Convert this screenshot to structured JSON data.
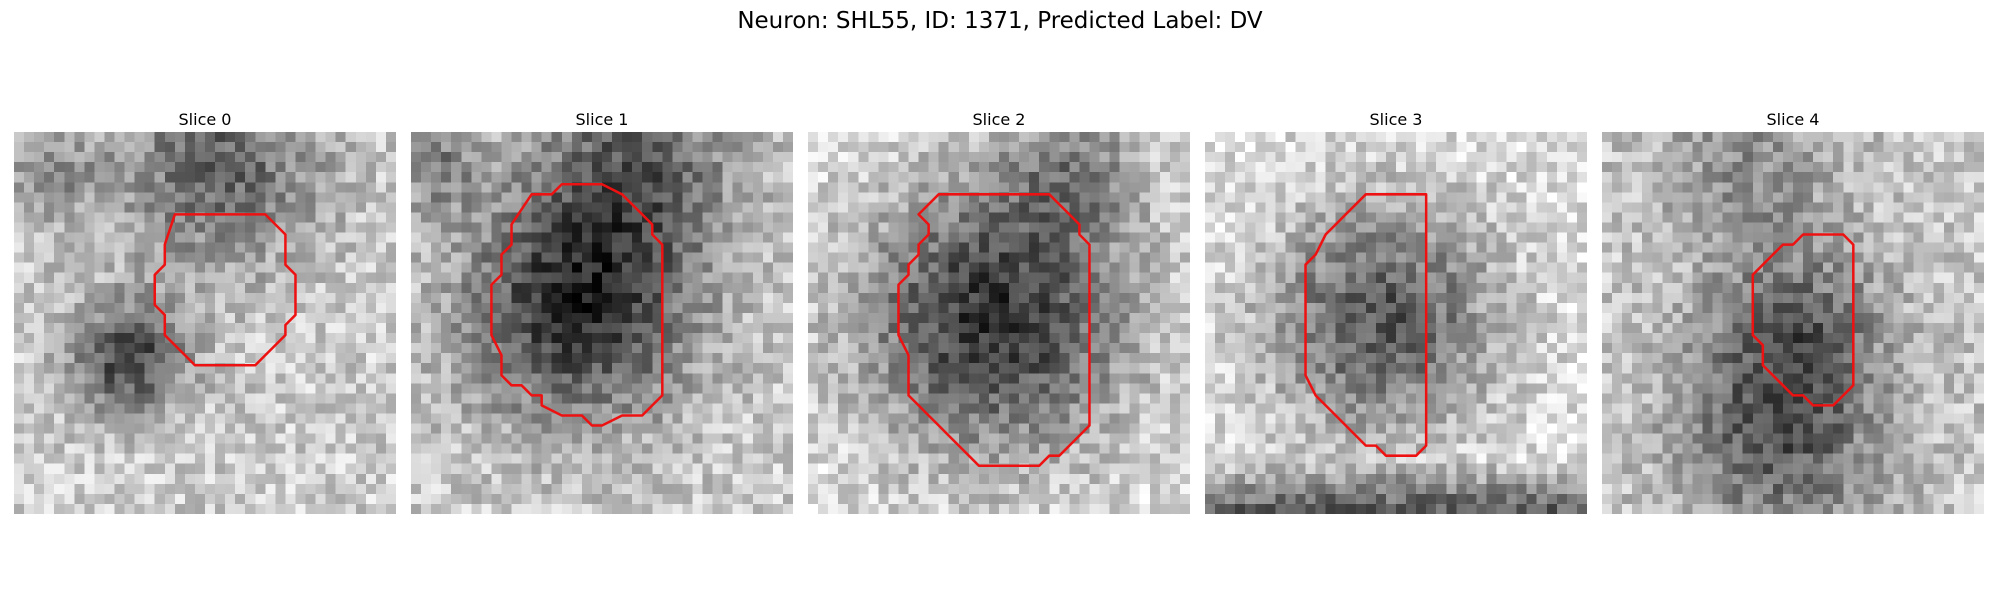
{
  "figure": {
    "title": "Neuron: SHL55, ID: 1371, Predicted Label: DV",
    "contour_color": "#ee1111"
  },
  "slices": [
    {
      "title": "Slice 0",
      "contour": [
        [
          16,
          8
        ],
        [
          25,
          8
        ],
        [
          27,
          10
        ],
        [
          27,
          13
        ],
        [
          28,
          14
        ],
        [
          28,
          18
        ],
        [
          27,
          19
        ],
        [
          27,
          20
        ],
        [
          26,
          21
        ],
        [
          24,
          23
        ],
        [
          18,
          23
        ],
        [
          17,
          22
        ],
        [
          16,
          21
        ],
        [
          15,
          20
        ],
        [
          15,
          18
        ],
        [
          14,
          17
        ],
        [
          14,
          14
        ],
        [
          15,
          13
        ],
        [
          15,
          11
        ]
      ]
    },
    {
      "title": "Slice 1",
      "contour": [
        [
          12,
          6
        ],
        [
          14,
          6
        ],
        [
          15,
          5
        ],
        [
          19,
          5
        ],
        [
          21,
          6
        ],
        [
          22,
          7
        ],
        [
          23,
          8
        ],
        [
          24,
          9
        ],
        [
          24,
          10
        ],
        [
          25,
          11
        ],
        [
          25,
          26
        ],
        [
          24,
          27
        ],
        [
          23,
          28
        ],
        [
          21,
          28
        ],
        [
          19,
          29
        ],
        [
          18,
          29
        ],
        [
          17,
          28
        ],
        [
          15,
          28
        ],
        [
          13,
          27
        ],
        [
          13,
          26
        ],
        [
          12,
          26
        ],
        [
          11,
          25
        ],
        [
          10,
          25
        ],
        [
          9,
          24
        ],
        [
          9,
          22
        ],
        [
          8,
          20
        ],
        [
          8,
          17
        ],
        [
          8,
          15
        ],
        [
          9,
          14
        ],
        [
          9,
          12
        ],
        [
          10,
          11
        ],
        [
          10,
          9
        ]
      ]
    },
    {
      "title": "Slice 2",
      "contour": [
        [
          13,
          6
        ],
        [
          24,
          6
        ],
        [
          25,
          7
        ],
        [
          26,
          8
        ],
        [
          27,
          9
        ],
        [
          27,
          10
        ],
        [
          28,
          11
        ],
        [
          28,
          29
        ],
        [
          27,
          30
        ],
        [
          26,
          31
        ],
        [
          25,
          32
        ],
        [
          24,
          32
        ],
        [
          23,
          33
        ],
        [
          17,
          33
        ],
        [
          16,
          32
        ],
        [
          15,
          31
        ],
        [
          14,
          30
        ],
        [
          13,
          29
        ],
        [
          12,
          28
        ],
        [
          11,
          27
        ],
        [
          10,
          26
        ],
        [
          10,
          24
        ],
        [
          10,
          22
        ],
        [
          9,
          20
        ],
        [
          9,
          17
        ],
        [
          9,
          15
        ],
        [
          10,
          14
        ],
        [
          10,
          13
        ],
        [
          11,
          12
        ],
        [
          11,
          11
        ],
        [
          12,
          10
        ],
        [
          12,
          9
        ],
        [
          11,
          8
        ]
      ]
    },
    {
      "title": "Slice 3",
      "contour": [
        [
          16,
          6
        ],
        [
          22,
          6
        ],
        [
          22,
          31
        ],
        [
          21,
          32
        ],
        [
          18,
          32
        ],
        [
          17,
          31
        ],
        [
          16,
          31
        ],
        [
          14,
          29
        ],
        [
          12,
          27
        ],
        [
          11,
          26
        ],
        [
          10,
          24
        ],
        [
          10,
          22
        ],
        [
          10,
          18
        ],
        [
          10,
          15
        ],
        [
          10,
          13
        ],
        [
          11,
          12
        ],
        [
          12,
          10
        ],
        [
          13,
          9
        ],
        [
          14,
          8
        ],
        [
          15,
          7
        ]
      ]
    },
    {
      "title": "Slice 4",
      "contour": [
        [
          20,
          10
        ],
        [
          24,
          10
        ],
        [
          25,
          11
        ],
        [
          25,
          25
        ],
        [
          24,
          26
        ],
        [
          23,
          27
        ],
        [
          21,
          27
        ],
        [
          20,
          26
        ],
        [
          19,
          26
        ],
        [
          18,
          25
        ],
        [
          17,
          24
        ],
        [
          16,
          23
        ],
        [
          16,
          21
        ],
        [
          15,
          20
        ],
        [
          15,
          17
        ],
        [
          15,
          15
        ],
        [
          15,
          14
        ],
        [
          16,
          13
        ],
        [
          17,
          12
        ],
        [
          18,
          11
        ],
        [
          19,
          11
        ]
      ]
    }
  ]
}
